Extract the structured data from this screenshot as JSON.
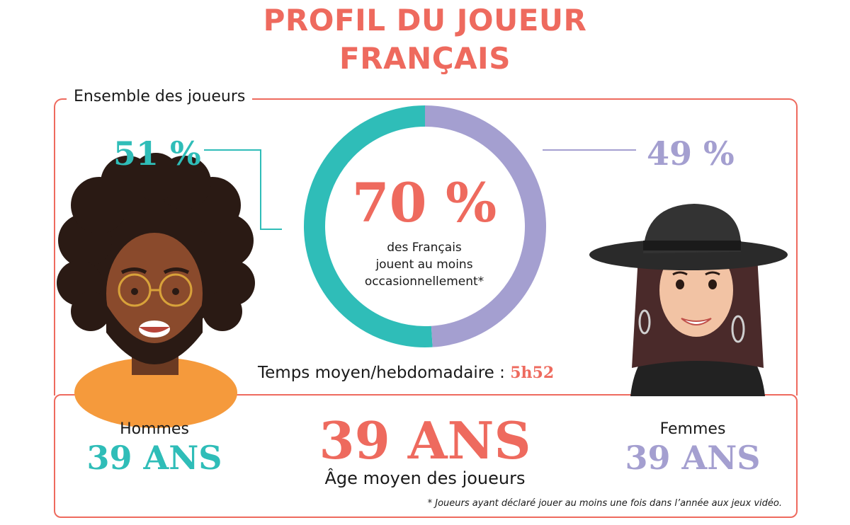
{
  "title_line1": "PROFIL DU JOUEUR",
  "title_line2": "FRANÇAIS",
  "section_label": "Ensemble des joueurs",
  "colors": {
    "accent": "#ee6a5e",
    "men": "#2fbdb8",
    "women": "#a49fd0"
  },
  "chart_data": {
    "type": "pie",
    "categories": [
      "Hommes",
      "Femmes"
    ],
    "values": [
      51,
      49
    ],
    "value_labels": [
      "51 %",
      "49 %"
    ],
    "colors": [
      "#2fbdb8",
      "#a49fd0"
    ],
    "center_value": "70 %",
    "center_text": "des Français jouent au moins occasionnellement*",
    "center_text_lines": [
      "des Français",
      "jouent au moins",
      "occasionnellement*"
    ]
  },
  "avg_time": {
    "label": "Temps moyen/hebdomadaire :",
    "value": "5h52"
  },
  "ages": {
    "men_label": "Hommes",
    "men_value": "39 ANS",
    "avg_value": "39 ANS",
    "avg_label": "Âge moyen des joueurs",
    "women_label": "Femmes",
    "women_value": "39 ANS"
  },
  "footnote": "* Joueurs ayant déclaré jouer au moins une fois dans l’année aux jeux vidéo."
}
